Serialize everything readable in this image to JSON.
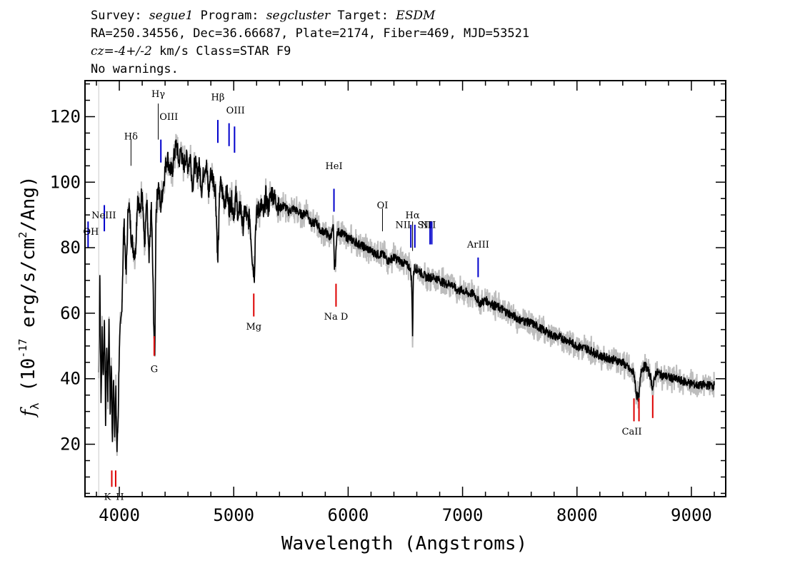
{
  "header": {
    "survey_label": "Survey:",
    "survey": "segue1",
    "program_label": "Program:",
    "program": "segcluster",
    "target_label": "Target:",
    "target": "ESDM",
    "line2": "RA=250.34556, Dec=36.66687, Plate=2174, Fiber=469, MJD=53521",
    "cz_label": "cz=",
    "cz_value": "-4+/-2",
    "cz_unit": "km/s",
    "class_text": "Class=STAR F9",
    "warnings": "No warnings."
  },
  "chart_data": {
    "type": "line",
    "xlabel": "Wavelength (Angstroms)",
    "ylabel": "f_λ (10^-17 erg/s/cm^2/Ang)",
    "xlim": [
      3700,
      9300
    ],
    "ylim": [
      4,
      131
    ],
    "x_ticks": [
      4000,
      5000,
      6000,
      7000,
      8000,
      9000
    ],
    "y_ticks": [
      20,
      40,
      60,
      80,
      100,
      120
    ],
    "grid": false,
    "colors": {
      "flux": "#000000",
      "error": "#bdbdbd",
      "emission": "#0000cc",
      "absorption": "#dd0000",
      "neutral": "#000000"
    },
    "series": [
      {
        "name": "flux",
        "x": [
          3820,
          3830,
          3840,
          3850,
          3860,
          3870,
          3880,
          3890,
          3900,
          3910,
          3920,
          3930,
          3940,
          3950,
          3960,
          3970,
          3980,
          3990,
          4000,
          4020,
          4040,
          4060,
          4080,
          4100,
          4120,
          4140,
          4160,
          4180,
          4200,
          4220,
          4240,
          4260,
          4280,
          4300,
          4310,
          4320,
          4340,
          4360,
          4380,
          4400,
          4420,
          4440,
          4460,
          4480,
          4500,
          4520,
          4540,
          4560,
          4580,
          4600,
          4620,
          4640,
          4660,
          4680,
          4700,
          4720,
          4740,
          4760,
          4780,
          4800,
          4820,
          4840,
          4861,
          4880,
          4900,
          4920,
          4940,
          4960,
          4980,
          5000,
          5020,
          5040,
          5060,
          5080,
          5100,
          5120,
          5140,
          5160,
          5170,
          5180,
          5190,
          5200,
          5220,
          5240,
          5260,
          5280,
          5300,
          5330,
          5360,
          5400,
          5440,
          5480,
          5520,
          5560,
          5600,
          5640,
          5680,
          5720,
          5760,
          5800,
          5840,
          5870,
          5880,
          5890,
          5900,
          5920,
          5960,
          6000,
          6050,
          6100,
          6150,
          6200,
          6250,
          6300,
          6350,
          6400,
          6450,
          6500,
          6540,
          6555,
          6563,
          6570,
          6580,
          6620,
          6680,
          6750,
          6800,
          6850,
          6900,
          6950,
          7000,
          7050,
          7100,
          7150,
          7200,
          7300,
          7400,
          7500,
          7600,
          7700,
          7800,
          7900,
          8000,
          8100,
          8200,
          8300,
          8400,
          8480,
          8498,
          8520,
          8542,
          8560,
          8600,
          8640,
          8662,
          8690,
          8750,
          8850,
          8950,
          9050,
          9150,
          9200
        ],
        "values": [
          42,
          72,
          32,
          55,
          40,
          60,
          28,
          50,
          35,
          58,
          30,
          45,
          20,
          42,
          25,
          35,
          18,
          30,
          50,
          60,
          88,
          72,
          95,
          85,
          80,
          78,
          96,
          90,
          99,
          80,
          94,
          75,
          93,
          60,
          46,
          90,
          100,
          92,
          98,
          104,
          108,
          104,
          103,
          108,
          112,
          106,
          110,
          104,
          108,
          105,
          108,
          99,
          106,
          103,
          105,
          98,
          104,
          106,
          96,
          103,
          101,
          98,
          76,
          100,
          97,
          94,
          97,
          92,
          95,
          90,
          96,
          89,
          93,
          86,
          92,
          88,
          89,
          78,
          74,
          72,
          86,
          90,
          92,
          93,
          90,
          96,
          92,
          97,
          95,
          92,
          93,
          91,
          92,
          91,
          90,
          91,
          87,
          88,
          85,
          85,
          83,
          86,
          74,
          76,
          84,
          85,
          84,
          83,
          82,
          81,
          80,
          79,
          78,
          78,
          76,
          77,
          76,
          75,
          74,
          70,
          54,
          71,
          74,
          73,
          71,
          71,
          70,
          69,
          69,
          67,
          67,
          66,
          66,
          63,
          64,
          62,
          60,
          58,
          57,
          55,
          53,
          52,
          50,
          49,
          47,
          46,
          45,
          42,
          42,
          35,
          34,
          43,
          44,
          41,
          37,
          42,
          41,
          40,
          39,
          38,
          38,
          38
        ]
      }
    ],
    "line_labels": [
      {
        "label": "OH",
        "x": 3727,
        "kind": "emission"
      },
      {
        "label": "NeIII",
        "x": 3869,
        "kind": "emission"
      },
      {
        "label": "Hδ",
        "x": 4102,
        "kind": "neutral"
      },
      {
        "label": "Hγ",
        "x": 4340,
        "kind": "neutral"
      },
      {
        "label": "OIII",
        "x": 4363,
        "kind": "emission"
      },
      {
        "label": "Hβ",
        "x": 4861,
        "kind": "emission"
      },
      {
        "label": "OIII",
        "x": 4959,
        "kind": "emission"
      },
      {
        "label": "OIII",
        "x": 5007,
        "kind": "emission"
      },
      {
        "label": "HeI",
        "x": 5876,
        "kind": "emission"
      },
      {
        "label": "OI",
        "x": 6300,
        "kind": "neutral"
      },
      {
        "label": "NII",
        "x": 6548,
        "kind": "emission"
      },
      {
        "label": "Hα",
        "x": 6563,
        "kind": "neutral"
      },
      {
        "label": "NII",
        "x": 6583,
        "kind": "emission"
      },
      {
        "label": "SII",
        "x": 6716,
        "kind": "emission"
      },
      {
        "label": "SII",
        "x": 6731,
        "kind": "emission"
      },
      {
        "label": "ArIII",
        "x": 7136,
        "kind": "emission"
      },
      {
        "label": "K",
        "x": 3934,
        "kind": "absorption"
      },
      {
        "label": "H",
        "x": 3968,
        "kind": "absorption"
      },
      {
        "label": "G",
        "x": 4305,
        "kind": "absorption"
      },
      {
        "label": "Mg",
        "x": 5175,
        "kind": "absorption"
      },
      {
        "label": "Na D",
        "x": 5894,
        "kind": "absorption"
      },
      {
        "label": "CaII",
        "x": 8498,
        "kind": "absorption"
      },
      {
        "label": "CaII",
        "x": 8542,
        "kind": "absorption"
      },
      {
        "label": "CaII",
        "x": 8662,
        "kind": "absorption"
      }
    ]
  }
}
